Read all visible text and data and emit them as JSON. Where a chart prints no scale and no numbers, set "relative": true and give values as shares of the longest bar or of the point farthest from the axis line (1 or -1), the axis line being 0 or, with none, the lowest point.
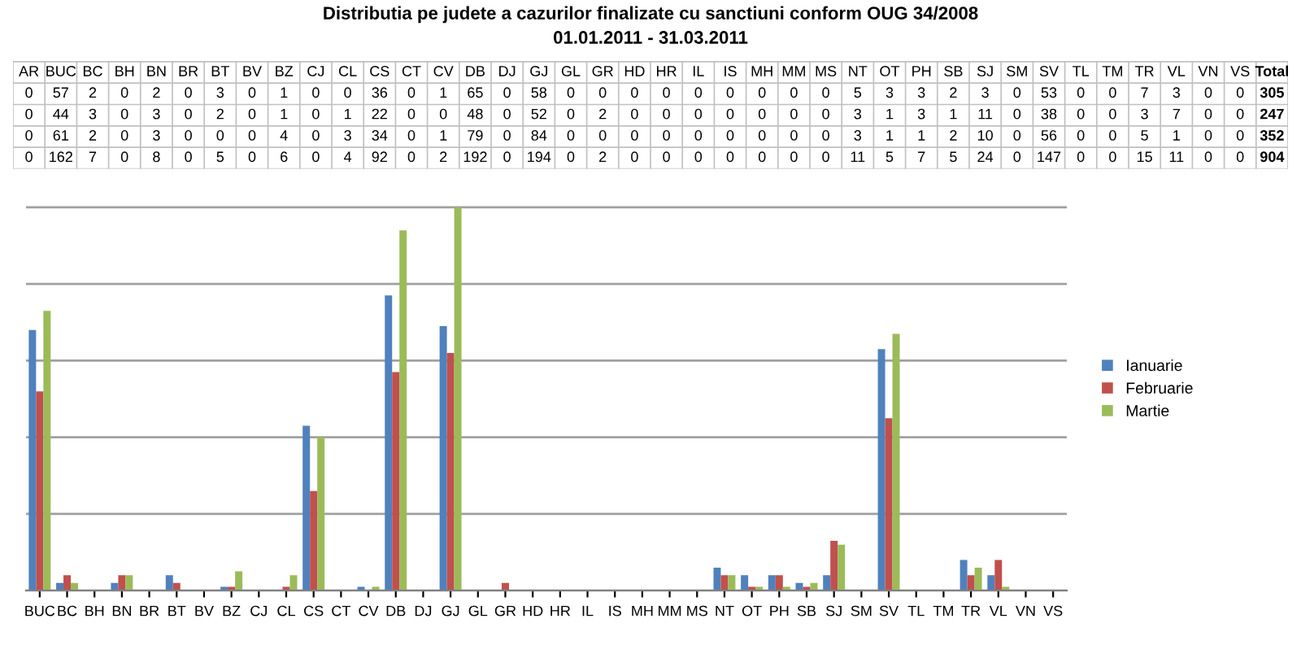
{
  "chart_data": [
    {
      "type": "other",
      "title": "Distributia pe judete a cazurilor finalizate cu sanctiuni conform OUG 34/2008",
      "subtitle": "01.01.2011 - 31.03.2011",
      "data_labels": true,
      "categories": [
        "AR",
        "BUC",
        "BC",
        "BH",
        "BN",
        "BR",
        "BT",
        "BV",
        "BZ",
        "CJ",
        "CL",
        "CS",
        "CT",
        "CV",
        "DB",
        "DJ",
        "GJ",
        "GL",
        "GR",
        "HD",
        "HR",
        "IL",
        "IS",
        "MH",
        "MM",
        "MS",
        "NT",
        "OT",
        "PH",
        "SB",
        "SJ",
        "SM",
        "SV",
        "TL",
        "TM",
        "TR",
        "VL",
        "VN",
        "VS",
        "Total"
      ],
      "series": [
        {
          "values": [
            0,
            57,
            2,
            0,
            2,
            0,
            3,
            0,
            1,
            0,
            0,
            36,
            0,
            1,
            65,
            0,
            58,
            0,
            0,
            0,
            0,
            0,
            0,
            0,
            0,
            0,
            5,
            3,
            3,
            2,
            3,
            0,
            53,
            0,
            0,
            7,
            3,
            0,
            0,
            305
          ]
        },
        {
          "values": [
            0,
            44,
            3,
            0,
            3,
            0,
            2,
            0,
            1,
            0,
            1,
            22,
            0,
            0,
            48,
            0,
            52,
            0,
            2,
            0,
            0,
            0,
            0,
            0,
            0,
            0,
            3,
            1,
            3,
            1,
            11,
            0,
            38,
            0,
            0,
            3,
            7,
            0,
            0,
            247
          ]
        },
        {
          "values": [
            0,
            61,
            2,
            0,
            3,
            0,
            0,
            0,
            4,
            0,
            3,
            34,
            0,
            1,
            79,
            0,
            84,
            0,
            0,
            0,
            0,
            0,
            0,
            0,
            0,
            0,
            3,
            1,
            1,
            2,
            10,
            0,
            56,
            0,
            0,
            5,
            1,
            0,
            0,
            352
          ]
        },
        {
          "values": [
            0,
            162,
            7,
            0,
            8,
            0,
            5,
            0,
            6,
            0,
            4,
            92,
            0,
            2,
            192,
            0,
            194,
            0,
            2,
            0,
            0,
            0,
            0,
            0,
            0,
            0,
            11,
            5,
            7,
            5,
            24,
            0,
            147,
            0,
            0,
            15,
            11,
            0,
            0,
            904
          ]
        }
      ]
    },
    {
      "type": "bar",
      "relative": true,
      "tick_labels": "x",
      "grid": "y",
      "legend": "right",
      "categories": [
        "BUC",
        "BC",
        "BH",
        "BN",
        "BR",
        "BT",
        "BV",
        "BZ",
        "CJ",
        "CL",
        "CS",
        "CT",
        "CV",
        "DB",
        "DJ",
        "GJ",
        "GL",
        "GR",
        "HD",
        "HR",
        "IL",
        "IS",
        "MH",
        "MM",
        "MS",
        "NT",
        "OT",
        "PH",
        "SB",
        "SJ",
        "SM",
        "SV",
        "TL",
        "TM",
        "TR",
        "VL",
        "VN",
        "VS"
      ],
      "series": [
        {
          "name": "Ianuarie",
          "color": "#4f81bd",
          "values": [
            0.68,
            0.02,
            0,
            0.02,
            0,
            0.04,
            0,
            0.01,
            0,
            0,
            0.43,
            0,
            0.01,
            0.77,
            0,
            0.69,
            0,
            0,
            0,
            0,
            0,
            0,
            0,
            0,
            0,
            0.06,
            0.04,
            0.04,
            0.02,
            0.04,
            0,
            0.63,
            0,
            0,
            0.08,
            0.04,
            0,
            0
          ]
        },
        {
          "name": "Februarie",
          "color": "#c0504d",
          "values": [
            0.52,
            0.04,
            0,
            0.04,
            0,
            0.02,
            0,
            0.01,
            0,
            0.01,
            0.26,
            0,
            0,
            0.57,
            0,
            0.62,
            0,
            0.02,
            0,
            0,
            0,
            0,
            0,
            0,
            0,
            0.04,
            0.01,
            0.04,
            0.01,
            0.13,
            0,
            0.45,
            0,
            0,
            0.04,
            0.08,
            0,
            0
          ]
        },
        {
          "name": "Martie",
          "color": "#9bbb59",
          "values": [
            0.73,
            0.02,
            0,
            0.04,
            0,
            0,
            0,
            0.05,
            0,
            0.04,
            0.4,
            0,
            0.01,
            0.94,
            0,
            1,
            0,
            0,
            0,
            0,
            0,
            0,
            0,
            0,
            0,
            0.04,
            0.01,
            0.01,
            0.02,
            0.12,
            0,
            0.67,
            0,
            0,
            0.06,
            0.01,
            0,
            0
          ]
        }
      ]
    }
  ]
}
